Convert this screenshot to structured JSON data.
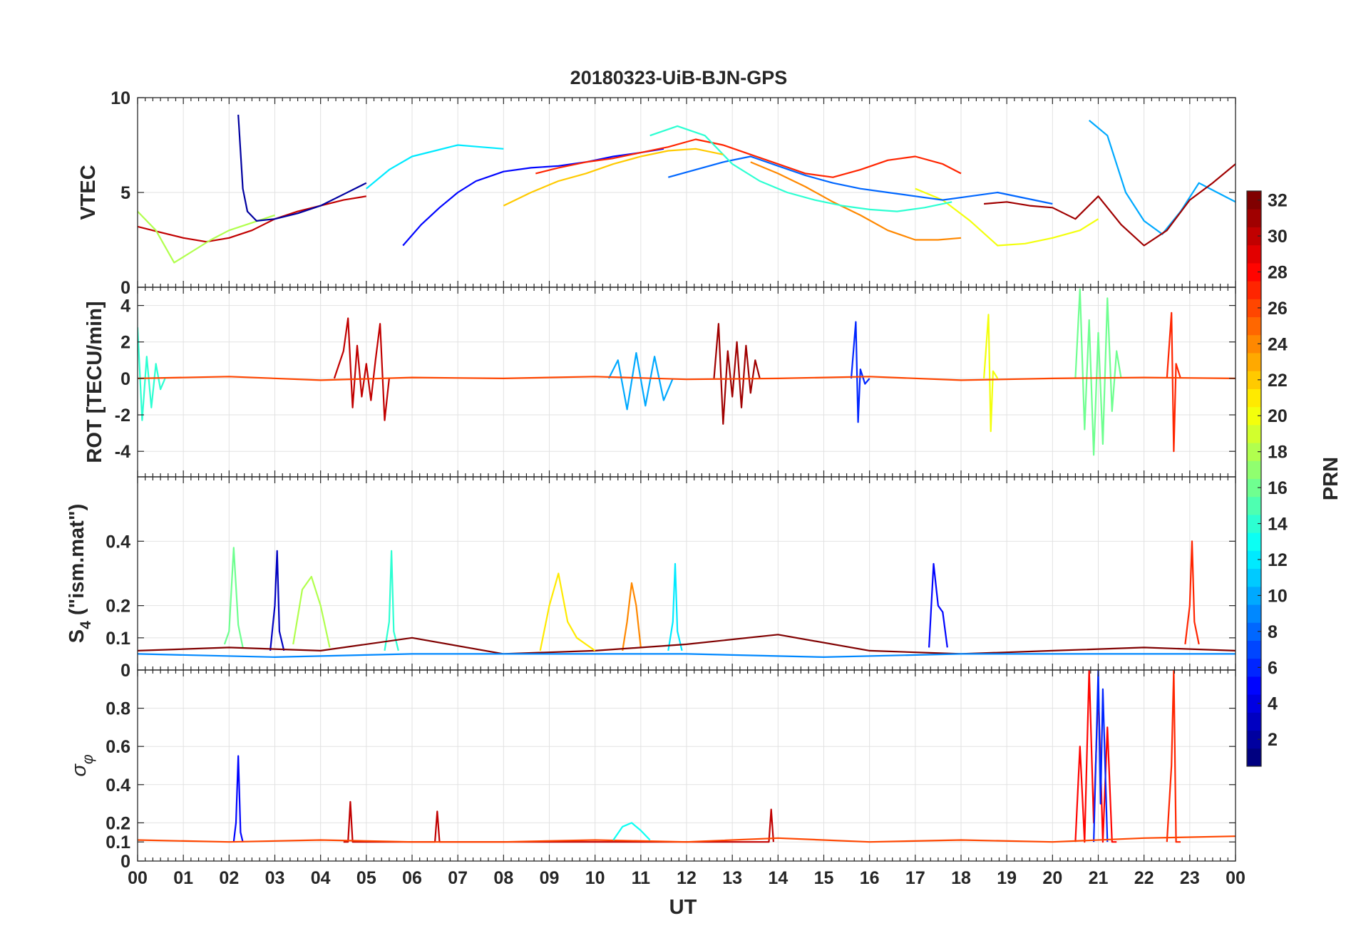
{
  "chart_data": {
    "type": "line",
    "title": "20180323-UiB-BJN-GPS",
    "xlabel": "UT",
    "x_range": [
      0,
      24
    ],
    "x_tick_labels": [
      "00",
      "01",
      "02",
      "03",
      "04",
      "05",
      "06",
      "07",
      "08",
      "09",
      "10",
      "11",
      "12",
      "13",
      "14",
      "15",
      "16",
      "17",
      "18",
      "19",
      "20",
      "21",
      "22",
      "23",
      "00"
    ],
    "colorbar": {
      "label": "PRN",
      "range": [
        1,
        32
      ],
      "colormap": "jet",
      "tick_labels": [
        "2",
        "4",
        "6",
        "8",
        "10",
        "12",
        "14",
        "16",
        "18",
        "20",
        "22",
        "24",
        "26",
        "28",
        "30",
        "32"
      ]
    },
    "panels": [
      {
        "ylabel": "VTEC",
        "ylim": [
          0,
          10
        ],
        "y_tick_labels": [
          "0",
          "5",
          "10"
        ],
        "series": [
          {
            "prn": 5,
            "x": [
              5.8,
              6.2,
              6.6,
              7.0,
              7.4,
              8.0,
              8.6,
              9.2,
              9.8,
              10.4,
              11.0,
              11.5
            ],
            "y": [
              2.2,
              3.3,
              4.2,
              5.0,
              5.6,
              6.1,
              6.3,
              6.4,
              6.6,
              6.9,
              7.1,
              7.3
            ]
          },
          {
            "prn": 12,
            "x": [
              5.0,
              5.5,
              6.0,
              6.5,
              7.0,
              7.5,
              8.0
            ],
            "y": [
              5.2,
              6.2,
              6.9,
              7.2,
              7.5,
              7.4,
              7.3
            ]
          },
          {
            "prn": 30,
            "x": [
              0.0,
              0.5,
              1.0,
              1.5,
              2.0,
              2.5,
              3.0,
              3.5,
              4.0,
              4.5,
              5.0
            ],
            "y": [
              3.2,
              2.9,
              2.6,
              2.4,
              2.6,
              3.0,
              3.6,
              4.0,
              4.3,
              4.6,
              4.8
            ]
          },
          {
            "prn": 18,
            "x": [
              0.0,
              0.4,
              0.8,
              1.2,
              1.6,
              2.0,
              2.5,
              3.0
            ],
            "y": [
              4.0,
              3.0,
              1.3,
              1.9,
              2.5,
              3.0,
              3.4,
              3.8
            ]
          },
          {
            "prn": 27,
            "x": [
              8.7,
              9.2,
              9.8,
              10.4,
              11.0,
              11.6,
              12.2,
              12.8,
              13.4,
              14.0,
              14.6,
              15.2,
              15.8,
              16.4,
              17.0,
              17.6,
              18.0
            ],
            "y": [
              6.0,
              6.3,
              6.6,
              6.8,
              7.1,
              7.4,
              7.8,
              7.5,
              7.0,
              6.5,
              6.0,
              5.8,
              6.2,
              6.7,
              6.9,
              6.5,
              6.0
            ]
          },
          {
            "prn": 24,
            "x": [
              13.4,
              14.0,
              14.6,
              15.2,
              15.8,
              16.4,
              17.0,
              17.5,
              18.0
            ],
            "y": [
              6.6,
              6.0,
              5.3,
              4.5,
              3.8,
              3.0,
              2.5,
              2.5,
              2.6
            ]
          },
          {
            "prn": 20,
            "x": [
              17.0,
              17.6,
              18.2,
              18.8,
              19.4,
              20.0,
              20.6,
              21.0
            ],
            "y": [
              5.2,
              4.6,
              3.5,
              2.2,
              2.3,
              2.6,
              3.0,
              3.6
            ]
          },
          {
            "prn": 10,
            "x": [
              20.8,
              21.2,
              21.6,
              22.0,
              22.4,
              22.8,
              23.2,
              23.6,
              24.0
            ],
            "y": [
              8.8,
              8.0,
              5.0,
              3.5,
              2.8,
              4.0,
              5.5,
              5.0,
              4.5
            ]
          },
          {
            "prn": 31,
            "x": [
              18.5,
              19.0,
              19.5,
              20.0,
              20.5,
              21.0,
              21.5,
              22.0,
              22.5,
              23.0,
              23.5,
              24.0
            ],
            "y": [
              4.4,
              4.5,
              4.3,
              4.2,
              3.6,
              4.8,
              3.3,
              2.2,
              3.0,
              4.6,
              5.5,
              6.5
            ]
          },
          {
            "prn": 8,
            "x": [
              11.6,
              12.2,
              12.8,
              13.4,
              14.0,
              14.6,
              15.2,
              15.8,
              16.4,
              17.0,
              17.6,
              18.2,
              18.8,
              19.4,
              20.0
            ],
            "y": [
              5.8,
              6.2,
              6.6,
              6.9,
              6.4,
              5.9,
              5.5,
              5.2,
              5.0,
              4.8,
              4.6,
              4.8,
              5.0,
              4.7,
              4.4
            ]
          },
          {
            "prn": 14,
            "x": [
              11.2,
              11.8,
              12.4,
              13.0,
              13.6,
              14.2,
              14.8,
              15.4,
              16.0,
              16.6,
              17.2,
              17.8
            ],
            "y": [
              8.0,
              8.5,
              8.0,
              6.5,
              5.6,
              5.0,
              4.6,
              4.3,
              4.1,
              4.0,
              4.2,
              4.5
            ]
          },
          {
            "prn": 2,
            "x": [
              2.2,
              2.3,
              2.4,
              2.6,
              3.0,
              3.5,
              4.0,
              4.5,
              5.0
            ],
            "y": [
              9.1,
              5.2,
              4.0,
              3.5,
              3.6,
              3.9,
              4.3,
              4.9,
              5.5
            ]
          },
          {
            "prn": 22,
            "x": [
              8.0,
              8.6,
              9.2,
              9.8,
              10.4,
              11.0,
              11.6,
              12.2,
              12.8
            ],
            "y": [
              4.3,
              5.0,
              5.6,
              6.0,
              6.5,
              6.9,
              7.2,
              7.3,
              7.0
            ]
          }
        ]
      },
      {
        "ylabel": "ROT [TECU/min]",
        "ylim": [
          -5.4,
          5.0
        ],
        "y_tick_labels": [
          "-4",
          "-2",
          "0",
          "2",
          "4"
        ],
        "series": [
          {
            "prn": 30,
            "x": [
              4.3,
              4.5,
              4.6,
              4.7,
              4.8,
              4.9,
              5.0,
              5.1,
              5.2,
              5.3,
              5.4,
              5.5
            ],
            "y": [
              0.0,
              1.5,
              3.3,
              -1.6,
              1.8,
              -1.0,
              0.8,
              -1.2,
              1.0,
              3.0,
              -2.3,
              0.0
            ]
          },
          {
            "prn": 31,
            "x": [
              12.6,
              12.7,
              12.8,
              12.9,
              13.0,
              13.1,
              13.2,
              13.3,
              13.4,
              13.5,
              13.6
            ],
            "y": [
              0.0,
              3.0,
              -2.5,
              1.5,
              -1.0,
              2.0,
              -1.6,
              1.8,
              -0.8,
              1.0,
              0.0
            ]
          },
          {
            "prn": 6,
            "x": [
              15.6,
              15.7,
              15.75,
              15.8,
              15.9,
              16.0
            ],
            "y": [
              0.0,
              3.1,
              -2.4,
              0.5,
              -0.3,
              0.0
            ]
          },
          {
            "prn": 20,
            "x": [
              18.5,
              18.6,
              18.65,
              18.7,
              18.8
            ],
            "y": [
              0.0,
              3.5,
              -2.9,
              0.4,
              0.0
            ]
          },
          {
            "prn": 16,
            "x": [
              20.5,
              20.6,
              20.7,
              20.8,
              20.9,
              21.0,
              21.1,
              21.2,
              21.3,
              21.4,
              21.5
            ],
            "y": [
              0.0,
              4.9,
              -2.8,
              3.2,
              -4.2,
              2.5,
              -3.6,
              4.4,
              -1.8,
              1.5,
              0.0
            ]
          },
          {
            "prn": 27,
            "x": [
              22.5,
              22.6,
              22.65,
              22.7,
              22.8
            ],
            "y": [
              0.0,
              3.6,
              -4.0,
              0.8,
              0.0
            ]
          },
          {
            "prn": 10,
            "x": [
              10.3,
              10.5,
              10.7,
              10.9,
              11.1,
              11.3,
              11.5,
              11.7
            ],
            "y": [
              0.0,
              1.0,
              -1.7,
              1.4,
              -1.5,
              1.2,
              -1.2,
              0.0
            ]
          },
          {
            "prn": 14,
            "x": [
              0.0,
              0.1,
              0.2,
              0.3,
              0.4,
              0.5,
              0.6
            ],
            "y": [
              2.8,
              -2.3,
              1.2,
              -1.6,
              0.8,
              -0.6,
              0.0
            ]
          },
          {
            "prn": 26,
            "x": [
              0.0,
              2.0,
              4.0,
              6.0,
              8.0,
              10.0,
              12.0,
              14.0,
              16.0,
              18.0,
              20.0,
              22.0,
              24.0
            ],
            "y": [
              0.0,
              0.1,
              -0.1,
              0.05,
              0.0,
              0.1,
              -0.05,
              0.0,
              0.1,
              -0.1,
              0.0,
              0.05,
              0.0
            ]
          }
        ]
      },
      {
        "ylabel": "S4 (\"ism.mat\")",
        "ylim": [
          0,
          0.6
        ],
        "y_tick_labels": [
          "0",
          "0.1",
          "0.2",
          "0.4"
        ],
        "series": [
          {
            "prn": 3,
            "x": [
              2.9,
              3.0,
              3.05,
              3.1,
              3.2
            ],
            "y": [
              0.06,
              0.2,
              0.37,
              0.12,
              0.06
            ]
          },
          {
            "prn": 16,
            "x": [
              1.9,
              2.0,
              2.1,
              2.2,
              2.3
            ],
            "y": [
              0.08,
              0.12,
              0.38,
              0.14,
              0.07
            ]
          },
          {
            "prn": 18,
            "x": [
              3.4,
              3.6,
              3.8,
              4.0,
              4.2
            ],
            "y": [
              0.08,
              0.25,
              0.29,
              0.2,
              0.07
            ]
          },
          {
            "prn": 14,
            "x": [
              5.4,
              5.5,
              5.55,
              5.6,
              5.7
            ],
            "y": [
              0.06,
              0.15,
              0.37,
              0.12,
              0.06
            ]
          },
          {
            "prn": 24,
            "x": [
              10.6,
              10.7,
              10.8,
              10.9,
              11.0
            ],
            "y": [
              0.06,
              0.15,
              0.27,
              0.2,
              0.07
            ]
          },
          {
            "prn": 12,
            "x": [
              11.6,
              11.7,
              11.75,
              11.8,
              11.9
            ],
            "y": [
              0.06,
              0.15,
              0.33,
              0.12,
              0.06
            ]
          },
          {
            "prn": 5,
            "x": [
              17.3,
              17.4,
              17.5,
              17.6,
              17.7
            ],
            "y": [
              0.07,
              0.33,
              0.2,
              0.18,
              0.07
            ]
          },
          {
            "prn": 27,
            "x": [
              22.9,
              23.0,
              23.05,
              23.1,
              23.2
            ],
            "y": [
              0.08,
              0.2,
              0.4,
              0.15,
              0.08
            ]
          },
          {
            "prn": 32,
            "x": [
              0.0,
              2.0,
              4.0,
              6.0,
              8.0,
              10.0,
              12.0,
              14.0,
              16.0,
              18.0,
              20.0,
              22.0,
              24.0
            ],
            "y": [
              0.06,
              0.07,
              0.06,
              0.1,
              0.05,
              0.06,
              0.08,
              0.11,
              0.06,
              0.05,
              0.06,
              0.07,
              0.06
            ]
          },
          {
            "prn": 21,
            "x": [
              8.8,
              9.0,
              9.2,
              9.4,
              9.6,
              9.8,
              10.0
            ],
            "y": [
              0.06,
              0.2,
              0.3,
              0.15,
              0.1,
              0.08,
              0.06
            ]
          },
          {
            "prn": 9,
            "x": [
              0.0,
              3.0,
              6.0,
              9.0,
              12.0,
              15.0,
              18.0,
              21.0,
              24.0
            ],
            "y": [
              0.05,
              0.04,
              0.05,
              0.05,
              0.05,
              0.04,
              0.05,
              0.05,
              0.05
            ]
          }
        ]
      },
      {
        "ylabel": "σφ",
        "ylim": [
          0,
          1
        ],
        "y_tick_labels": [
          "0",
          "0.1",
          "0.2",
          "0.4",
          "0.6",
          "0.8"
        ],
        "series": [
          {
            "prn": 5,
            "x": [
              2.1,
              2.15,
              2.2,
              2.25,
              2.3
            ],
            "y": [
              0.1,
              0.2,
              0.55,
              0.15,
              0.1
            ]
          },
          {
            "prn": 28,
            "x": [
              20.5,
              20.6,
              20.7,
              20.8,
              20.9,
              21.0,
              21.1,
              21.2,
              21.3,
              21.4
            ],
            "y": [
              0.1,
              0.6,
              0.1,
              1.0,
              0.2,
              0.9,
              0.1,
              0.7,
              0.1,
              0.1
            ]
          },
          {
            "prn": 6,
            "x": [
              20.9,
              21.0,
              21.05,
              21.1,
              21.2
            ],
            "y": [
              0.1,
              1.0,
              0.3,
              0.9,
              0.1
            ]
          },
          {
            "prn": 27,
            "x": [
              22.5,
              22.6,
              22.65,
              22.7,
              22.8
            ],
            "y": [
              0.1,
              0.5,
              1.0,
              0.1,
              0.1
            ]
          },
          {
            "prn": 30,
            "x": [
              4.5,
              4.6,
              4.65,
              4.7,
              6.5,
              6.55,
              6.6,
              13.8,
              13.85,
              13.9
            ],
            "y": [
              0.1,
              0.1,
              0.31,
              0.1,
              0.1,
              0.26,
              0.1,
              0.1,
              0.27,
              0.1
            ]
          },
          {
            "prn": 26,
            "x": [
              0.0,
              2.0,
              4.0,
              6.0,
              8.0,
              10.0,
              12.0,
              14.0,
              16.0,
              18.0,
              20.0,
              22.0,
              24.0
            ],
            "y": [
              0.11,
              0.1,
              0.11,
              0.1,
              0.1,
              0.11,
              0.1,
              0.12,
              0.1,
              0.11,
              0.1,
              0.12,
              0.13
            ]
          },
          {
            "prn": 13,
            "x": [
              10.4,
              10.6,
              10.8,
              11.0,
              11.2
            ],
            "y": [
              0.11,
              0.18,
              0.2,
              0.16,
              0.11
            ]
          }
        ]
      }
    ]
  }
}
